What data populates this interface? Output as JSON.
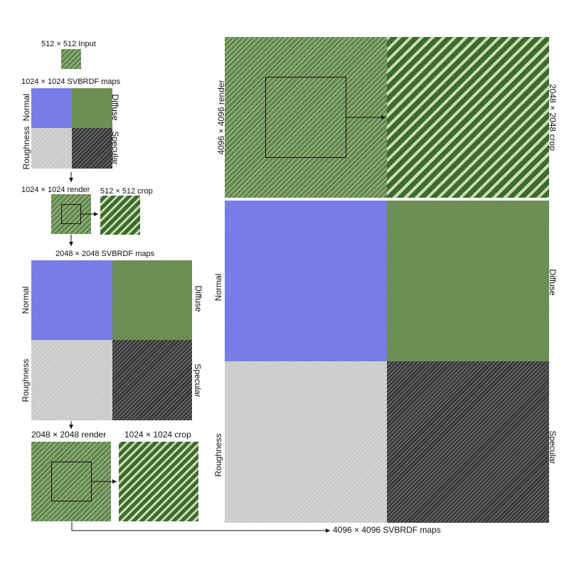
{
  "labels": {
    "input": "512 × 512 Input",
    "svbrdf_1024": "1024 × 1024 SVBRDF maps",
    "render_1024": "1024 × 1024 render",
    "crop_512": "512 × 512 crop",
    "svbrdf_2048": "2048 × 2048 SVBRDF maps",
    "render_2048": "2048 × 2048 render",
    "crop_1024": "1024 × 1024 crop",
    "svbrdf_4096": "4096 × 4096 SVBRDF maps",
    "render_4096": "4096 × 4096 render",
    "crop_2048": "2048 × 2048 crop"
  },
  "maps": {
    "normal": "Normal",
    "diffuse": "Diffuse",
    "roughness": "Roughness",
    "specular": "Specular"
  },
  "colors": {
    "normal": "#7378e6",
    "diffuse": "#6a8c52",
    "roughness": "#c9c9c9",
    "specular": "#3a3a3a",
    "render": "#5f8647"
  }
}
